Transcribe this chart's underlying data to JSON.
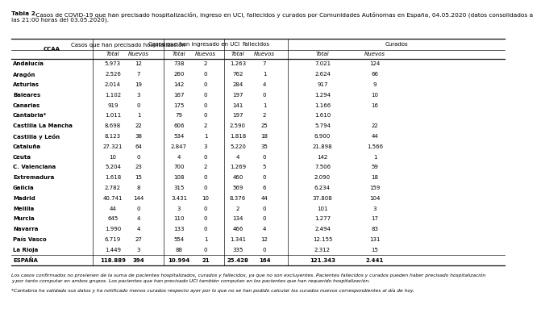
{
  "title_bold": "Tabla 2.",
  "title_rest": " Casos de COVID-19 que han precisado hospitalización, ingreso en UCI, fallecidos y curados por Comunidades Autónomas en España, 04.05.2020 (datos consolidados a las 21:00 horas del 03.05.2020).",
  "rows": [
    [
      "Andalucía",
      "5.973",
      "12",
      "738",
      "2",
      "1.263",
      "7",
      "7.021",
      "124"
    ],
    [
      "Aragón",
      "2.526",
      "7",
      "260",
      "0",
      "762",
      "1",
      "2.624",
      "66"
    ],
    [
      "Asturias",
      "2.014",
      "19",
      "142",
      "0",
      "284",
      "4",
      "917",
      "9"
    ],
    [
      "Baleares",
      "1.102",
      "3",
      "167",
      "0",
      "197",
      "0",
      "1.294",
      "10"
    ],
    [
      "Canarias",
      "919",
      "0",
      "175",
      "0",
      "141",
      "1",
      "1.166",
      "16"
    ],
    [
      "Cantabria*",
      "1.011",
      "1",
      "79",
      "0",
      "197",
      "2",
      "1.610",
      ""
    ],
    [
      "Castilla La Mancha",
      "8.698",
      "22",
      "606",
      "2",
      "2.590",
      "25",
      "5.794",
      "22"
    ],
    [
      "Castilla y León",
      "8.123",
      "38",
      "534",
      "1",
      "1.818",
      "18",
      "6.900",
      "44"
    ],
    [
      "Cataluña",
      "27.321",
      "64",
      "2.847",
      "3",
      "5.220",
      "35",
      "21.898",
      "1.566"
    ],
    [
      "Ceuta",
      "10",
      "0",
      "4",
      "0",
      "4",
      "0",
      "142",
      "1"
    ],
    [
      "C. Valenciana",
      "5.204",
      "23",
      "700",
      "2",
      "1.269",
      "5",
      "7.506",
      "59"
    ],
    [
      "Extremadura",
      "1.618",
      "15",
      "108",
      "0",
      "460",
      "0",
      "2.090",
      "18"
    ],
    [
      "Galicia",
      "2.782",
      "8",
      "315",
      "0",
      "569",
      "6",
      "6.234",
      "159"
    ],
    [
      "Madrid",
      "40.741",
      "144",
      "3.431",
      "10",
      "8.376",
      "44",
      "37.808",
      "104"
    ],
    [
      "Melilla",
      "44",
      "0",
      "3",
      "0",
      "2",
      "0",
      "101",
      "3"
    ],
    [
      "Murcia",
      "645",
      "4",
      "110",
      "0",
      "134",
      "0",
      "1.277",
      "17"
    ],
    [
      "Navarra",
      "1.990",
      "4",
      "133",
      "0",
      "466",
      "4",
      "2.494",
      "83"
    ],
    [
      "País Vasco",
      "6.719",
      "27",
      "554",
      "1",
      "1.341",
      "12",
      "12.155",
      "131"
    ],
    [
      "La Rioja",
      "1.449",
      "3",
      "88",
      "0",
      "335",
      "0",
      "2.312",
      "15"
    ],
    [
      "ESPAÑA",
      "118.889",
      "394",
      "10.994",
      "21",
      "25.428",
      "164",
      "121.343",
      "2.441"
    ]
  ],
  "footer1a": "Los casos confirmados no provienen de la suma de pacientes hospitalizados, curados y fallecidos, ya que no son excluyentes. Pacientes fallecidos y curados pueden haber precisado hospitalización",
  "footer1b": "y por tanto computar en ambos grupos. Los pacientes que han precisado UCI también computan en los pacientes que han requerido hospitalización.",
  "footer2": "*Cantabria ha validado sus datos y ha notificado menos curados respecto ayer por lo que no se han podido calcular los curados nuevos correspondientes al día de hoy.",
  "bg_color": "#ffffff"
}
